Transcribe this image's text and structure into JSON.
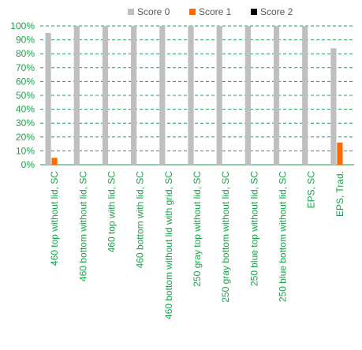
{
  "chart_data": {
    "type": "bar",
    "categories": [
      "460 top without lid, SC",
      "460 bottom without lid, SC",
      "460 top with lid, SC",
      "460 bottom with lid, SC",
      "460 bottom without lid with grid, SC",
      "250 gray top without lid, SC",
      "250 gray bottom without lid, SC",
      "250 blue top without lid, SC",
      "250 blue bottom without lid, SC",
      "EPS, SC",
      "EPS, Trad."
    ],
    "series": [
      {
        "name": "Score 0",
        "color": "#bfbfbf",
        "values": [
          95,
          100,
          100,
          100,
          100,
          100,
          100,
          100,
          100,
          100,
          84
        ]
      },
      {
        "name": "Score 1",
        "color": "#ff6a00",
        "values": [
          5,
          0,
          0,
          0,
          0,
          0,
          0,
          0,
          0,
          0,
          16
        ]
      },
      {
        "name": "Score 2",
        "color": "#000000",
        "values": [
          0,
          0,
          0,
          0,
          0,
          0,
          0,
          0,
          0,
          0,
          0
        ]
      }
    ],
    "ylim": [
      0,
      100
    ],
    "yticks": [
      "0%",
      "10%",
      "20%",
      "30%",
      "40%",
      "50%",
      "60%",
      "70%",
      "80%",
      "90%",
      "100%"
    ],
    "grid": true,
    "legend_position": "top",
    "axis_text_color": "#1aa34a",
    "grid_color": "#1f9a55"
  }
}
